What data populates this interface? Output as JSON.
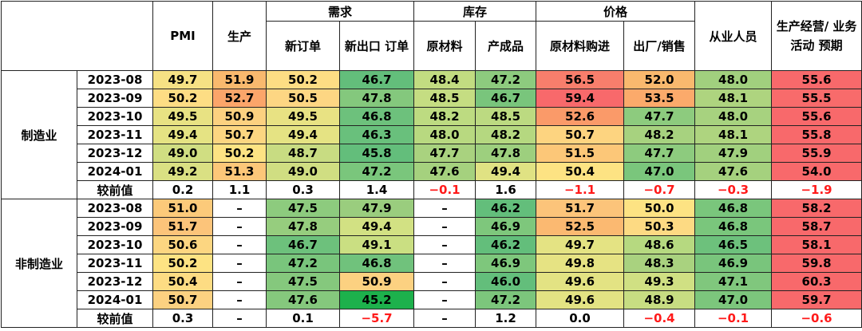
{
  "header": {
    "groups": {
      "demand": "需求",
      "inventory": "库存",
      "price": "价格"
    },
    "columns": [
      "PMI",
      "生产",
      "新订单",
      "新出口\n订单",
      "原材料",
      "产成品",
      "原材料购进",
      "出厂/销售",
      "从业人员",
      "生产经营/\n业务活动\n预期"
    ]
  },
  "sections": [
    {
      "label": "制造业",
      "rows": [
        {
          "date": "2023-08",
          "values": [
            "49.7",
            "51.9",
            "50.2",
            "46.7",
            "48.4",
            "47.2",
            "56.5",
            "52.0",
            "48.0",
            "55.6"
          ]
        },
        {
          "date": "2023-09",
          "values": [
            "50.2",
            "52.7",
            "50.5",
            "47.8",
            "48.5",
            "46.7",
            "59.4",
            "53.5",
            "48.1",
            "55.5"
          ]
        },
        {
          "date": "2023-10",
          "values": [
            "49.5",
            "50.9",
            "49.5",
            "46.8",
            "48.2",
            "48.5",
            "52.6",
            "47.7",
            "48.0",
            "55.6"
          ]
        },
        {
          "date": "2023-11",
          "values": [
            "49.4",
            "50.7",
            "49.4",
            "46.3",
            "48.0",
            "48.2",
            "50.7",
            "48.2",
            "48.1",
            "55.8"
          ]
        },
        {
          "date": "2023-12",
          "values": [
            "49.0",
            "50.2",
            "48.7",
            "45.8",
            "47.7",
            "47.8",
            "51.5",
            "47.7",
            "47.9",
            "55.9"
          ]
        },
        {
          "date": "2024-01",
          "values": [
            "49.2",
            "51.3",
            "49.0",
            "47.2",
            "47.6",
            "49.4",
            "50.4",
            "47.0",
            "47.6",
            "54.0"
          ]
        }
      ],
      "change": {
        "label": "较前值",
        "values": [
          "0.2",
          "1.1",
          "0.3",
          "1.4",
          "−0.1",
          "1.6",
          "−1.1",
          "−0.7",
          "−0.3",
          "−1.9"
        ]
      }
    },
    {
      "label": "非制造业",
      "rows": [
        {
          "date": "2023-08",
          "values": [
            "51.0",
            "–",
            "47.5",
            "47.9",
            "–",
            "46.2",
            "51.7",
            "50.0",
            "46.8",
            "58.2"
          ]
        },
        {
          "date": "2023-09",
          "values": [
            "51.7",
            "–",
            "47.8",
            "49.4",
            "–",
            "46.9",
            "52.5",
            "50.3",
            "46.8",
            "58.7"
          ]
        },
        {
          "date": "2023-10",
          "values": [
            "50.6",
            "–",
            "46.7",
            "49.1",
            "–",
            "46.2",
            "49.7",
            "48.6",
            "46.5",
            "58.1"
          ]
        },
        {
          "date": "2023-11",
          "values": [
            "50.2",
            "–",
            "47.2",
            "46.8",
            "–",
            "46.9",
            "49.8",
            "48.3",
            "46.9",
            "59.8"
          ]
        },
        {
          "date": "2023-12",
          "values": [
            "50.4",
            "–",
            "47.5",
            "50.9",
            "–",
            "46.0",
            "49.6",
            "49.3",
            "47.1",
            "60.3"
          ]
        },
        {
          "date": "2024-01",
          "values": [
            "50.7",
            "–",
            "47.6",
            "45.2",
            "–",
            "47.2",
            "49.6",
            "48.9",
            "47.0",
            "59.7"
          ]
        }
      ],
      "change": {
        "label": "较前值",
        "values": [
          "0.3",
          "–",
          "0.1",
          "−5.7",
          "–",
          "1.2",
          "0.0",
          "−0.4",
          "−0.1",
          "−0.6"
        ]
      }
    }
  ],
  "colors": {
    "negative_text": "#ff1a1a",
    "sections": [
      [
        [
          "#f6e184",
          "#f9b96e",
          "#fddd84",
          "#63be7b",
          "#c2dc81",
          "#8dcb7e",
          "#f87e6c",
          "#f9b96e",
          "#a1d07e",
          "#f8696b"
        ],
        [
          "#fddd84",
          "#fba56a",
          "#fdd683",
          "#84c87d",
          "#c5dd82",
          "#79c57c",
          "#f8696b",
          "#fbaa6b",
          "#aed47f",
          "#f86b6b"
        ],
        [
          "#e8e283",
          "#fcd180",
          "#e8e283",
          "#6dc17c",
          "#bddb81",
          "#bcda81",
          "#fa9a69",
          "#8dcb7e",
          "#a7d27f",
          "#f8696b"
        ],
        [
          "#e5e383",
          "#fcd681",
          "#e5e383",
          "#69c07c",
          "#b8d980",
          "#b5d880",
          "#fdd480",
          "#a7d27f",
          "#aed47f",
          "#f8696b"
        ],
        [
          "#d0de82",
          "#fde383",
          "#c8dc82",
          "#63be7b",
          "#a9d27f",
          "#9dcf7e",
          "#fcc778",
          "#8dcb7e",
          "#a1d07e",
          "#f8696b"
        ],
        [
          "#dae083",
          "#fcc779",
          "#d0de82",
          "#7ac67c",
          "#a5d17e",
          "#e0e283",
          "#fde383",
          "#7ac67c",
          "#a5d17e",
          "#f8696b"
        ]
      ],
      [
        [
          "#fcca7a",
          "#ffffff",
          "#8dcb7e",
          "#9acd7e",
          "#ffffff",
          "#63be7b",
          "#fcc47a",
          "#fde383",
          "#7ac67c",
          "#f8696b"
        ],
        [
          "#fcc47a",
          "#ffffff",
          "#96cd7e",
          "#d2e183",
          "#ffffff",
          "#7ec77c",
          "#fbb971",
          "#fdda83",
          "#7ac67c",
          "#f8696b"
        ],
        [
          "#fcd681",
          "#ffffff",
          "#6dc17c",
          "#cadf82",
          "#ffffff",
          "#63be7b",
          "#e4e383",
          "#b6d980",
          "#6dc17c",
          "#f8696b"
        ],
        [
          "#fde383",
          "#ffffff",
          "#79c57c",
          "#70c27c",
          "#ffffff",
          "#7ec77c",
          "#e6e383",
          "#a9d27f",
          "#79c57c",
          "#f8696b"
        ],
        [
          "#fddc83",
          "#ffffff",
          "#85c87d",
          "#fcd181",
          "#ffffff",
          "#63be7b",
          "#e3e383",
          "#d0e083",
          "#80c77d",
          "#f8696b"
        ],
        [
          "#fcd181",
          "#ffffff",
          "#85c87d",
          "#1db14c",
          "#ffffff",
          "#7cc67c",
          "#e3e383",
          "#c7dd82",
          "#7cc67c",
          "#f8696b"
        ]
      ]
    ]
  }
}
